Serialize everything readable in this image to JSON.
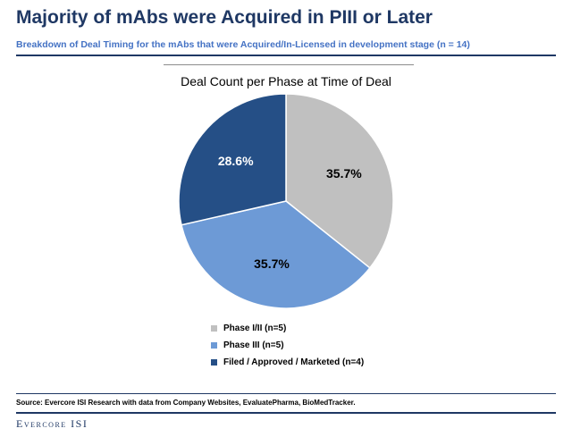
{
  "header": {
    "title": "Majority of mAbs were Acquired in PIII or Later",
    "subtitle": "Breakdown of Deal Timing for the mAbs that were Acquired/In-Licensed  in development stage (n = 14)"
  },
  "chart_data": {
    "type": "pie",
    "title": "Deal Count per Phase at Time of Deal",
    "slices": [
      {
        "name": "Phase I/II (n=5)",
        "value": 5,
        "label": "35.7%",
        "color": "#c0c0c0",
        "label_color": "#000000"
      },
      {
        "name": "Phase III (n=5)",
        "value": 5,
        "label": "35.7%",
        "color": "#6d9ad6",
        "label_color": "#000000"
      },
      {
        "name": "Filed / Approved / Marketed (n=4)",
        "value": 4,
        "label": "28.6%",
        "color": "#254f86",
        "label_color": "#ffffff"
      }
    ],
    "start_angle_deg": 0,
    "direction": "clockwise",
    "legend_position": "bottom"
  },
  "footer": {
    "source": "Source: Evercore ISI Research with data from Company Websites, EvaluatePharma, BioMedTracker.",
    "brand": "Evercore ISI"
  }
}
